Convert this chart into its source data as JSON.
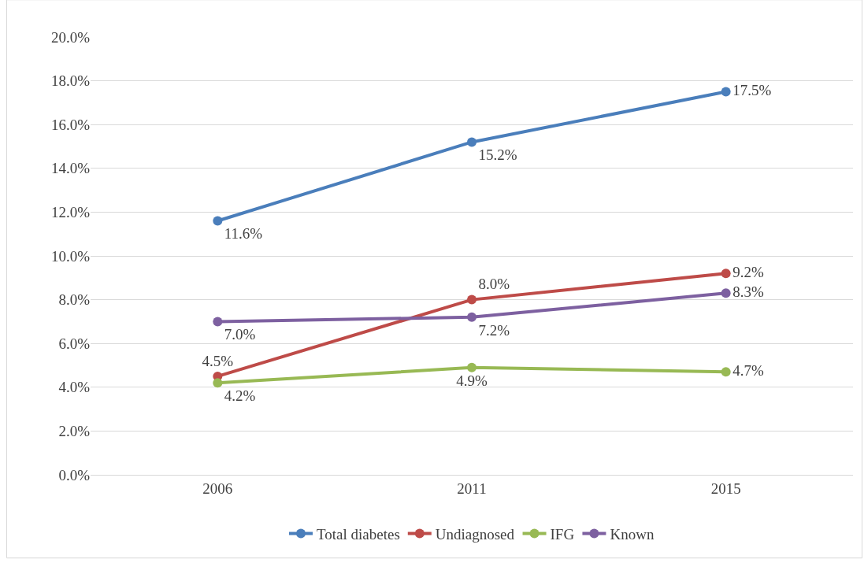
{
  "chart_data": {
    "type": "line",
    "categories": [
      "2006",
      "2011",
      "2015"
    ],
    "series": [
      {
        "name": "Total diabetes",
        "color": "#4a7ebb",
        "values": [
          11.6,
          15.2,
          17.5
        ],
        "value_labels": [
          "11.6%",
          "15.2%",
          "17.5%"
        ]
      },
      {
        "name": "Undiagnosed",
        "color": "#be4b48",
        "values": [
          4.5,
          8.0,
          9.2
        ],
        "value_labels": [
          "4.5%",
          "8.0%",
          "9.2%"
        ]
      },
      {
        "name": "IFG",
        "color": "#98b954",
        "values": [
          4.2,
          4.9,
          4.7
        ],
        "value_labels": [
          "4.2%",
          "4.9%",
          "4.7%"
        ]
      },
      {
        "name": "Known",
        "color": "#7d60a0",
        "values": [
          7.0,
          7.2,
          8.3
        ],
        "value_labels": [
          "7.0%",
          "7.2%",
          "8.3%"
        ]
      }
    ],
    "ylim": [
      0,
      20
    ],
    "yticks": [
      {
        "value": 0,
        "label": "0.0%"
      },
      {
        "value": 2,
        "label": "2.0%"
      },
      {
        "value": 4,
        "label": "4.0%"
      },
      {
        "value": 6,
        "label": "6.0%"
      },
      {
        "value": 8,
        "label": "8.0%"
      },
      {
        "value": 10,
        "label": "10.0%"
      },
      {
        "value": 12,
        "label": "12.0%"
      },
      {
        "value": 14,
        "label": "14.0%"
      },
      {
        "value": 16,
        "label": "16.0%"
      },
      {
        "value": 18,
        "label": "18.0%"
      },
      {
        "value": 20,
        "label": "20.0%"
      }
    ],
    "grid": "y",
    "legend": "bottom",
    "marker": "circle",
    "line_style": "solid"
  }
}
